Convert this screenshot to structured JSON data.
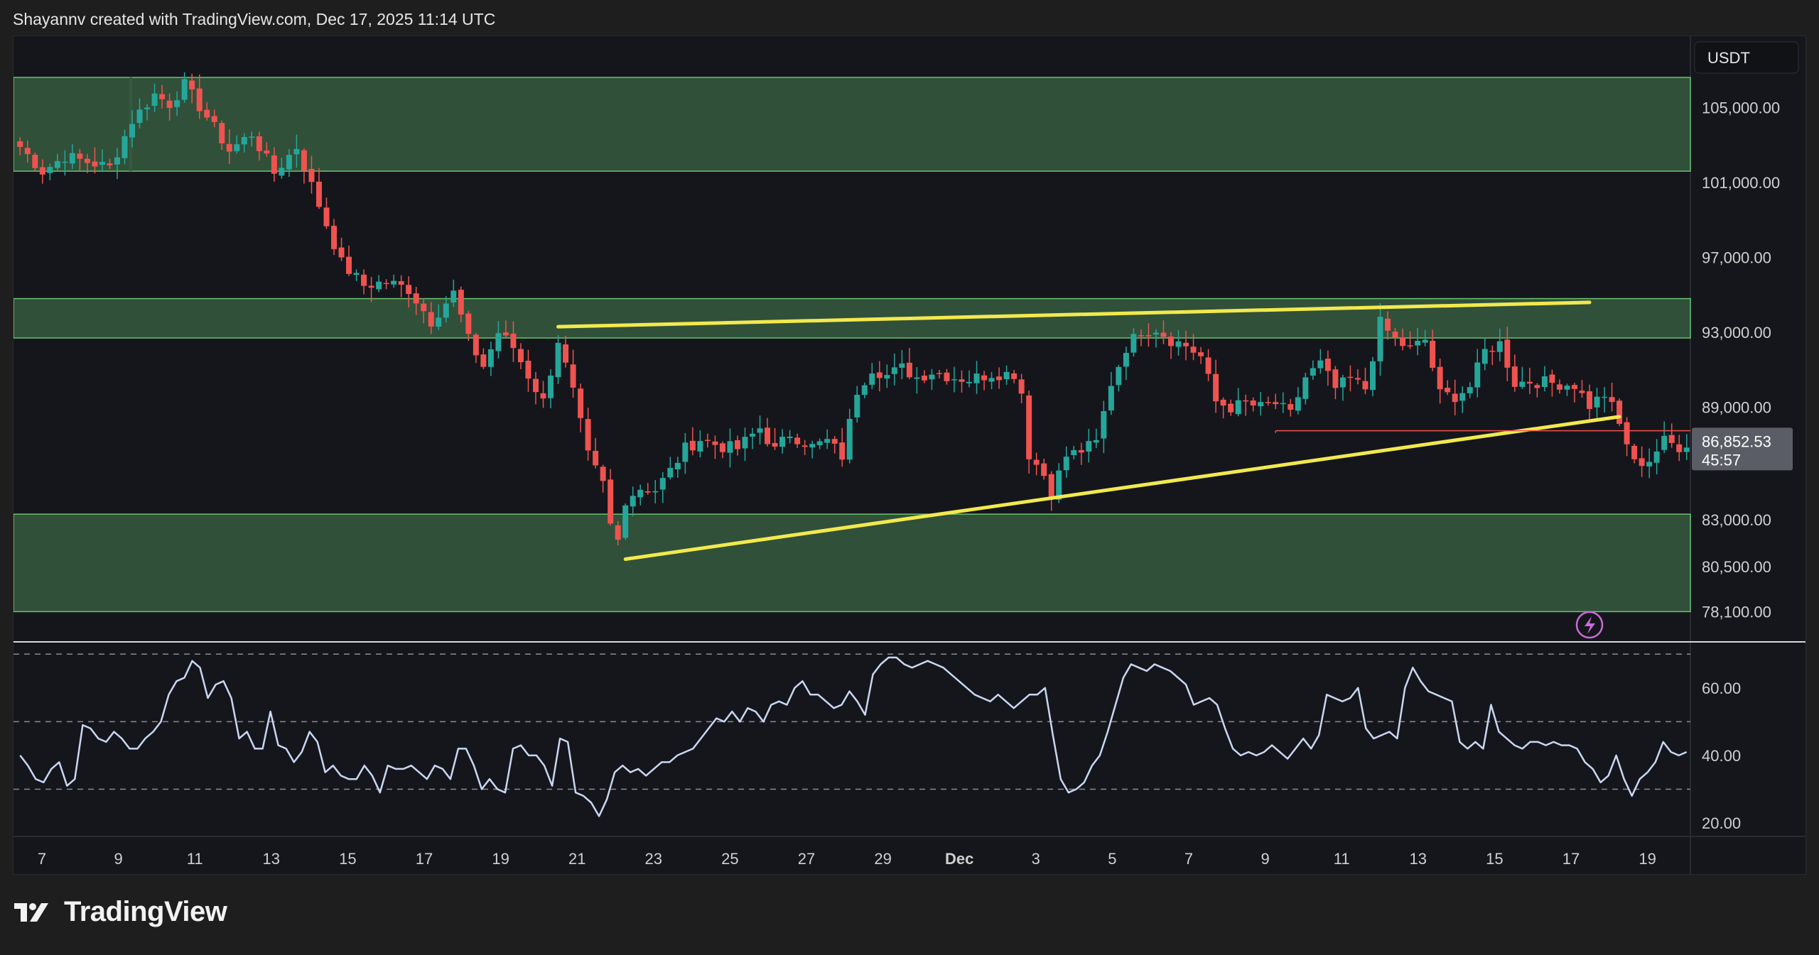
{
  "header": {
    "attribution": "Shayannv created with TradingView.com, Dec 17, 2025 11:14 UTC"
  },
  "brand": {
    "name": "TradingView"
  },
  "colors": {
    "background": "#15161c",
    "candle_up": "#26a69a",
    "candle_down": "#ef5350",
    "zone_fill": "#355a3e",
    "zone_border": "#6bc36f",
    "trendline": "#f2e94e",
    "rsi_line": "#c9d7f2",
    "price_line": "#ef5350"
  },
  "price_axis": {
    "currency_label": "USDT",
    "current_price": "86,852.53",
    "countdown": "45:57",
    "ticks": [
      "105,000.00",
      "101,000.00",
      "97,000.00",
      "93,000.00",
      "89,000.00",
      "83,000.00",
      "80,500.00",
      "78,100.00"
    ]
  },
  "rsi_axis": {
    "ticks": [
      "60.00",
      "40.00",
      "20.00"
    ]
  },
  "time_axis": {
    "ticks": [
      "7",
      "9",
      "11",
      "13",
      "15",
      "17",
      "19",
      "21",
      "23",
      "25",
      "27",
      "29",
      "Dec",
      "3",
      "5",
      "7",
      "9",
      "11",
      "13",
      "15",
      "17",
      "19"
    ]
  },
  "alert_icon": "lightning-icon",
  "chart_data": [
    {
      "type": "candlestick",
      "symbol_quote": "USDT",
      "x_ticks": [
        "7",
        "9",
        "11",
        "13",
        "15",
        "17",
        "19",
        "21",
        "23",
        "25",
        "27",
        "29",
        "Dec",
        "3",
        "5",
        "7",
        "9",
        "11",
        "13",
        "15",
        "17",
        "19"
      ],
      "y_ticks": [
        105000,
        101000,
        97000,
        93000,
        89000,
        83000,
        80500,
        78100
      ],
      "close_path": [
        [
          0,
          102900
        ],
        [
          3,
          101600
        ],
        [
          6,
          102400
        ],
        [
          9,
          102100
        ],
        [
          12,
          101800
        ],
        [
          15,
          104300
        ],
        [
          18,
          105700
        ],
        [
          20,
          105200
        ],
        [
          22,
          106200
        ],
        [
          25,
          104500
        ],
        [
          28,
          102700
        ],
        [
          31,
          103600
        ],
        [
          34,
          101500
        ],
        [
          37,
          102900
        ],
        [
          40,
          99800
        ],
        [
          43,
          96700
        ],
        [
          46,
          95500
        ],
        [
          49,
          95700
        ],
        [
          52,
          95300
        ],
        [
          55,
          93600
        ],
        [
          58,
          95100
        ],
        [
          60,
          92600
        ],
        [
          62,
          91200
        ],
        [
          64,
          93000
        ],
        [
          66,
          92200
        ],
        [
          68,
          90700
        ],
        [
          70,
          89300
        ],
        [
          72,
          92600
        ],
        [
          74,
          89800
        ],
        [
          76,
          86400
        ],
        [
          78,
          84900
        ],
        [
          79,
          82700
        ],
        [
          80,
          81900
        ],
        [
          81,
          84100
        ],
        [
          83,
          84700
        ],
        [
          85,
          84600
        ],
        [
          87,
          85600
        ],
        [
          89,
          86800
        ],
        [
          91,
          87300
        ],
        [
          94,
          86900
        ],
        [
          96,
          86800
        ],
        [
          99,
          87900
        ],
        [
          101,
          86700
        ],
        [
          103,
          87600
        ],
        [
          106,
          86900
        ],
        [
          108,
          87200
        ],
        [
          110,
          86400
        ],
        [
          112,
          89900
        ],
        [
          114,
          91100
        ],
        [
          116,
          90700
        ],
        [
          118,
          91100
        ],
        [
          120,
          90600
        ],
        [
          122,
          90900
        ],
        [
          125,
          90600
        ],
        [
          127,
          90500
        ],
        [
          130,
          90800
        ],
        [
          133,
          90800
        ],
        [
          134,
          89800
        ],
        [
          135,
          86500
        ],
        [
          137,
          85400
        ],
        [
          138,
          84500
        ],
        [
          140,
          86400
        ],
        [
          142,
          86700
        ],
        [
          144,
          87100
        ],
        [
          146,
          90300
        ],
        [
          148,
          92200
        ],
        [
          150,
          93100
        ],
        [
          152,
          93200
        ],
        [
          154,
          92600
        ],
        [
          156,
          92300
        ],
        [
          158,
          91700
        ],
        [
          160,
          89300
        ],
        [
          162,
          89000
        ],
        [
          164,
          89200
        ],
        [
          166,
          89000
        ],
        [
          168,
          89200
        ],
        [
          170,
          88600
        ],
        [
          172,
          90600
        ],
        [
          174,
          91300
        ],
        [
          176,
          90000
        ],
        [
          178,
          90500
        ],
        [
          180,
          90000
        ],
        [
          182,
          93500
        ],
        [
          184,
          92600
        ],
        [
          186,
          92100
        ],
        [
          188,
          92600
        ],
        [
          190,
          89700
        ],
        [
          192,
          89600
        ],
        [
          194,
          90100
        ],
        [
          196,
          92000
        ],
        [
          198,
          92400
        ],
        [
          200,
          90300
        ],
        [
          202,
          90400
        ],
        [
          205,
          90300
        ],
        [
          208,
          90200
        ],
        [
          210,
          89100
        ],
        [
          212,
          89700
        ],
        [
          213,
          89000
        ],
        [
          215,
          87100
        ],
        [
          216,
          86000
        ],
        [
          218,
          86200
        ],
        [
          220,
          87200
        ],
        [
          222,
          86900
        ],
        [
          223,
          86852
        ]
      ],
      "candle_count": 224,
      "zones": [
        {
          "top": 106600,
          "bottom": 101600
        },
        {
          "top": 94800,
          "bottom": 92700
        },
        {
          "top": 83300,
          "bottom": 78100
        }
      ],
      "trendlines": [
        {
          "from": [
            72,
            93300
          ],
          "to": [
            210,
            94600
          ]
        },
        {
          "from": [
            81,
            80900
          ],
          "to": [
            214,
            88500
          ]
        }
      ],
      "horizontal_line": {
        "from": 168,
        "value": 87750
      },
      "last_price": 86852.53,
      "ylim": [
        76600,
        108800
      ]
    },
    {
      "type": "line",
      "name": "",
      "y_ticks": [
        60,
        40,
        20
      ],
      "bands": [
        70,
        50,
        30
      ],
      "ylim": [
        16,
        73
      ],
      "values": [
        40,
        37,
        33,
        32,
        36,
        38,
        31,
        33,
        49,
        48,
        45,
        44,
        47,
        45,
        42,
        42,
        45,
        47,
        50,
        58,
        62,
        63,
        68,
        66,
        57,
        61,
        62,
        57,
        45,
        47,
        42,
        42,
        53,
        43,
        42,
        38,
        41,
        47,
        44,
        35,
        37,
        34,
        33,
        33,
        37,
        34,
        29,
        37,
        36,
        36,
        37,
        35,
        33,
        37,
        36,
        33,
        42,
        42,
        37,
        30,
        33,
        30,
        29,
        42,
        43,
        40,
        40,
        37,
        31,
        45,
        44,
        29,
        28,
        26,
        22,
        27,
        35,
        37,
        35,
        36,
        34,
        36,
        38,
        38,
        40,
        41,
        42,
        45,
        48,
        51,
        50,
        53,
        50,
        54,
        53,
        50,
        55,
        56,
        55,
        60,
        62,
        58,
        58,
        56,
        54,
        55,
        59,
        56,
        52,
        64,
        67,
        69,
        69,
        67,
        66,
        67,
        68,
        67,
        66,
        64,
        62,
        60,
        58,
        57,
        56,
        58,
        56,
        54,
        56,
        58,
        58,
        60,
        46,
        33,
        29,
        30,
        32,
        37,
        40,
        47,
        55,
        63,
        67,
        66,
        65,
        67,
        66,
        65,
        63,
        61,
        55,
        56,
        57,
        55,
        48,
        42,
        40,
        41,
        40,
        41,
        43,
        41,
        39,
        42,
        45,
        42,
        46,
        58,
        57,
        56,
        57,
        60,
        48,
        45,
        46,
        47,
        45,
        60,
        66,
        62,
        59,
        58,
        57,
        56,
        44,
        42,
        44,
        42,
        55,
        47,
        45,
        43,
        42,
        44,
        44,
        43,
        44,
        43,
        43,
        42,
        38,
        36,
        32,
        34,
        40,
        33,
        28,
        33,
        35,
        38,
        44,
        41,
        40,
        41
      ]
    }
  ]
}
